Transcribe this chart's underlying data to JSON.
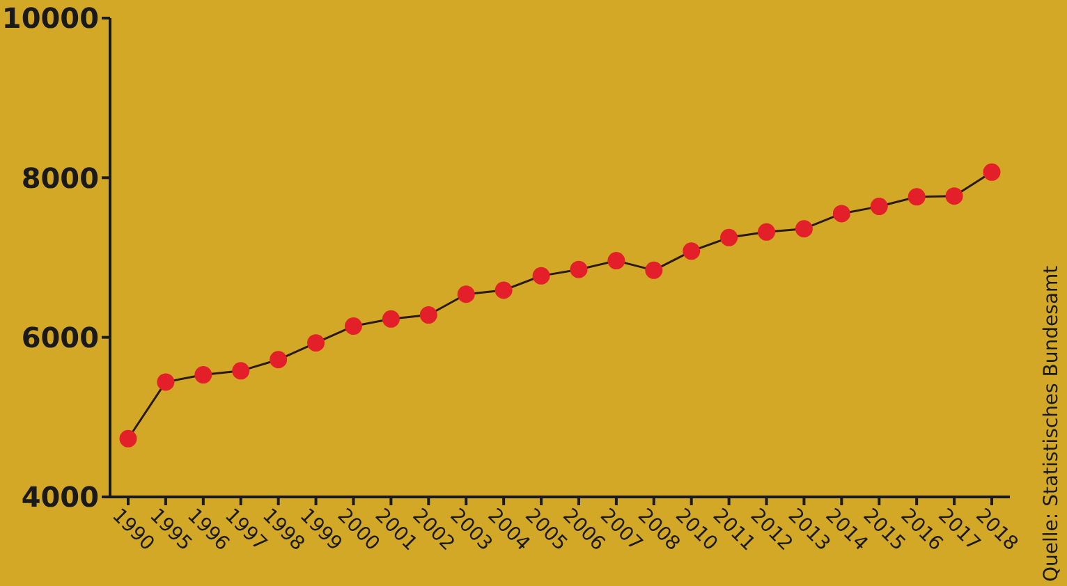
{
  "chart_data": {
    "type": "line",
    "categories": [
      "1990",
      "1995",
      "1996",
      "1997",
      "1998",
      "1999",
      "2000",
      "2001",
      "2002",
      "2003",
      "2004",
      "2005",
      "2006",
      "2007",
      "2008",
      "2010",
      "2011",
      "2012",
      "2013",
      "2014",
      "2015",
      "2016",
      "2017",
      "2018"
    ],
    "series": [
      {
        "color": "#e3202a",
        "values": [
          4730,
          5440,
          5530,
          5580,
          5720,
          5930,
          6140,
          6230,
          6280,
          6540,
          6590,
          6770,
          6850,
          6960,
          6840,
          7080,
          7250,
          7320,
          7360,
          7550,
          7640,
          7760,
          7770,
          8070
        ]
      }
    ],
    "ylim": [
      4000,
      10000
    ],
    "yticks": [
      4000,
      6000,
      8000,
      10000
    ],
    "grid": false,
    "legend": false,
    "marker": "circle",
    "line_style": "solid",
    "annotations": [
      "Quelle: Statistisches Bundesamt"
    ]
  }
}
